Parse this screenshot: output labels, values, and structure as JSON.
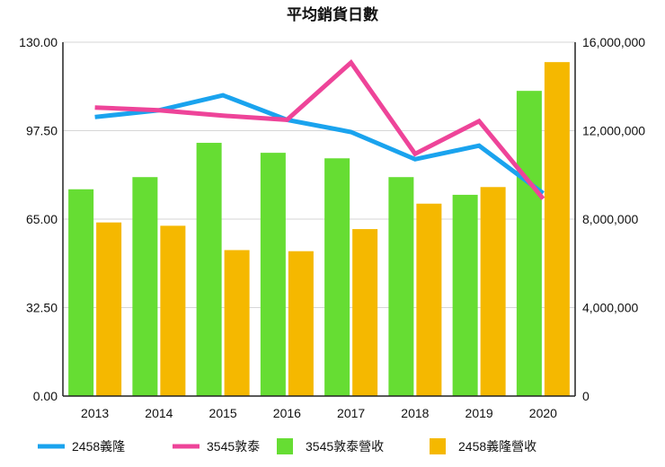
{
  "chart_data": {
    "type": "bar",
    "title": "平均銷貨日數",
    "categories": [
      "2013",
      "2014",
      "2015",
      "2016",
      "2017",
      "2018",
      "2019",
      "2020"
    ],
    "y_left": {
      "ylim": [
        0,
        130
      ],
      "ticks": [
        "0.00",
        "32.50",
        "65.00",
        "97.50",
        "130.00"
      ],
      "tick_values": [
        0,
        32.5,
        65,
        97.5,
        130
      ]
    },
    "y_right": {
      "ylim": [
        0,
        16000000
      ],
      "ticks": [
        "0",
        "4,000,000",
        "8,000,000",
        "12,000,000",
        "16,000,000"
      ],
      "tick_values": [
        0,
        4000000,
        8000000,
        12000000,
        16000000
      ]
    },
    "series": [
      {
        "name": "3545敦泰營收",
        "type": "bar",
        "axis": "right",
        "color": "#66dd33",
        "values": [
          9350000,
          9900000,
          11450000,
          11000000,
          10750000,
          9900000,
          9100000,
          13800000
        ]
      },
      {
        "name": "2458義隆營收",
        "type": "bar",
        "axis": "right",
        "color": "#f5b800",
        "values": [
          7850000,
          7700000,
          6600000,
          6550000,
          7550000,
          8700000,
          9450000,
          15100000
        ]
      },
      {
        "name": "2458義隆",
        "type": "line",
        "axis": "left",
        "color": "#1aa3ee",
        "values": [
          102.5,
          105,
          110.5,
          101.5,
          97,
          87,
          92,
          74.5
        ]
      },
      {
        "name": "3545敦泰",
        "type": "line",
        "axis": "left",
        "color": "#ee4499",
        "values": [
          106,
          105,
          103,
          101.5,
          122.5,
          89,
          101,
          72.5
        ]
      }
    ],
    "legend": {
      "position": "bottom",
      "items": [
        "2458義隆",
        "3545敦泰",
        "3545敦泰營收",
        "2458義隆營收"
      ]
    },
    "grid": true
  }
}
